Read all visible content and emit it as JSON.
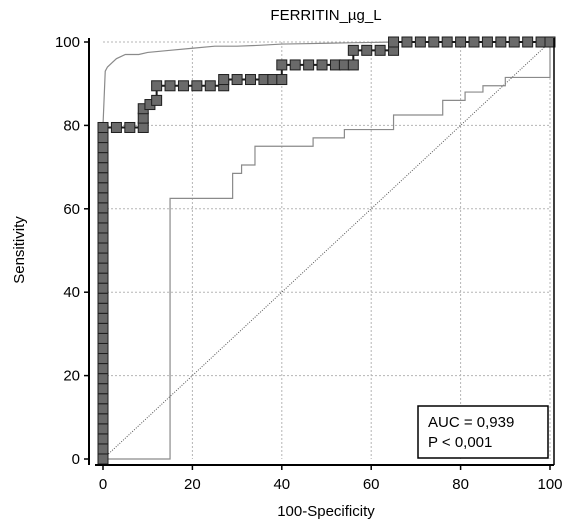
{
  "chart_data": {
    "type": "line",
    "title": "FERRITIN_µg_L",
    "xlabel": "100-Specificity",
    "ylabel": "Sensitivity",
    "xlim": [
      0,
      100
    ],
    "ylim": [
      0,
      100
    ],
    "xticks": [
      0,
      20,
      40,
      60,
      80,
      100
    ],
    "yticks": [
      0,
      20,
      40,
      60,
      80,
      100
    ],
    "grid": true,
    "annotation": {
      "auc": "AUC = 0,939",
      "p": "P < 0,001",
      "placement": "bottom-right"
    },
    "series": [
      {
        "role": "roc-curve",
        "color": "#6a6a6a",
        "x": [
          0,
          0,
          3,
          6,
          9,
          9,
          12,
          12,
          15,
          18,
          21,
          24,
          27,
          27,
          30,
          33,
          36,
          40,
          40,
          43,
          46,
          49,
          52,
          56,
          56,
          59,
          62,
          65,
          65,
          68,
          71,
          74,
          77,
          80,
          83,
          86,
          89,
          92,
          95,
          98,
          100
        ],
        "y": [
          0,
          79.5,
          79.5,
          79.5,
          79.5,
          84,
          86,
          89.5,
          89.5,
          89.5,
          89.5,
          89.5,
          89.5,
          91,
          91,
          91,
          91,
          91,
          94.5,
          94.5,
          94.5,
          94.5,
          94.5,
          94.5,
          98,
          98,
          98,
          98,
          100,
          100,
          100,
          100,
          100,
          100,
          100,
          100,
          100,
          100,
          100,
          100,
          100
        ]
      },
      {
        "role": "ci-upper",
        "color": "#8a8a8a",
        "x": [
          0,
          0.5,
          1,
          2,
          3,
          4,
          5,
          8,
          10,
          15,
          20,
          25,
          30,
          35,
          40,
          45,
          50,
          55,
          60,
          65,
          70,
          80,
          90,
          100
        ],
        "y": [
          80,
          93,
          94,
          95,
          96,
          96.5,
          97,
          97,
          97.5,
          98,
          98.5,
          99,
          99,
          99.2,
          99.5,
          99.6,
          99.7,
          99.8,
          99.9,
          100,
          100,
          100,
          100,
          100
        ]
      },
      {
        "role": "ci-lower",
        "color": "#8a8a8a",
        "x": [
          0,
          15,
          15,
          29,
          29,
          31,
          31,
          34,
          34,
          47,
          47,
          54,
          54,
          65,
          65,
          76,
          76,
          81,
          81,
          85,
          85,
          90,
          90,
          100,
          100
        ],
        "y": [
          0,
          0,
          62.5,
          62.5,
          68.5,
          68.5,
          70.5,
          70.5,
          75,
          75,
          77,
          77,
          79,
          79,
          82.5,
          82.5,
          86,
          86,
          88,
          88,
          89.5,
          89.5,
          91.5,
          91.5,
          100
        ]
      },
      {
        "role": "reference-diagonal",
        "color": "#555555",
        "x": [
          0,
          100
        ],
        "y": [
          0,
          100
        ]
      }
    ]
  }
}
